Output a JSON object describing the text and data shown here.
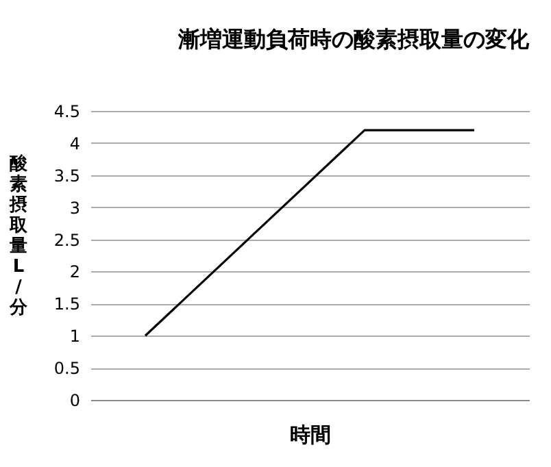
{
  "chart_data": {
    "type": "line",
    "title": "漸増運動負荷時の酸素摂取量の変化",
    "xlabel": "時間",
    "ylabel": "酸素摂取量 L/分",
    "categories": [
      null,
      null,
      null,
      null
    ],
    "series": [
      {
        "color": "#000000",
        "values": [
          1,
          2.6,
          4.2,
          4.2
        ]
      }
    ],
    "ylim": [
      0,
      4.5
    ],
    "yticks": [
      0,
      0.5,
      1,
      1.5,
      2,
      2.5,
      3,
      3.5,
      4,
      4.5
    ],
    "grid": "y",
    "tick_labels": "y",
    "marker": "none",
    "line_style": "solid"
  }
}
